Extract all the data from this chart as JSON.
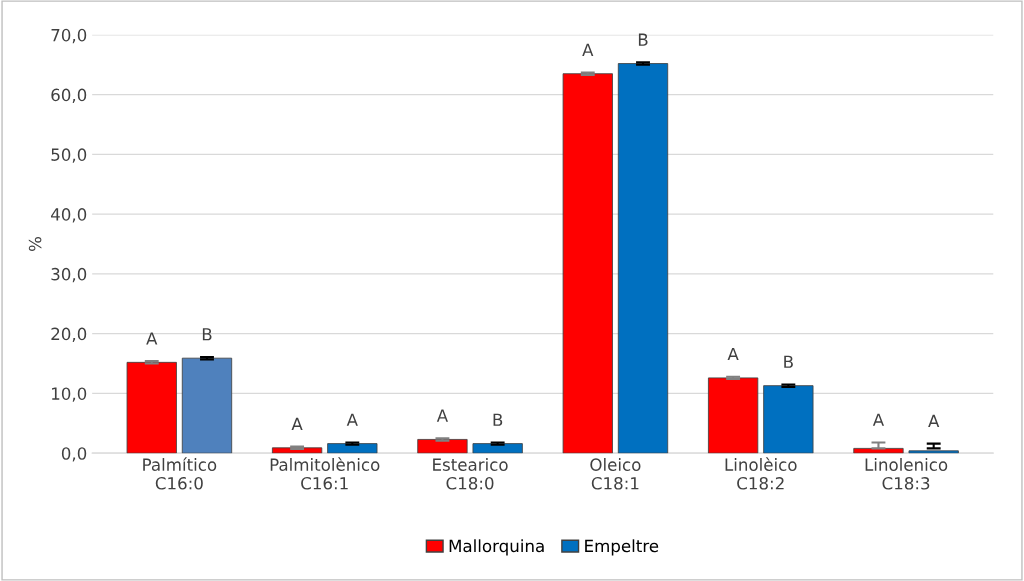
{
  "chart_data": {
    "type": "bar",
    "ylabel": "%",
    "categories": [
      "Palmítico\nC16:0",
      "Palmitolènico\nC16:1",
      "Estearico\nC18:0",
      "Oleico\nC18:1",
      "Linolèico\nC18:2",
      "Linolenico\nC18:3"
    ],
    "series": [
      {
        "name": "Mallorquina",
        "color": "#ff0000",
        "values": [
          15.2,
          0.9,
          2.3,
          63.5,
          12.6,
          0.8
        ],
        "errors": [
          0.2,
          0.2,
          0.2,
          0.2,
          0.2,
          [
            0.8,
            1.8
          ]
        ],
        "value_labels": [
          "A",
          "A",
          "A",
          "A",
          "A",
          "A"
        ]
      },
      {
        "name": "Empeltre",
        "color": "#0070c0",
        "colors": [
          "#4f81bd",
          "#0070c0",
          "#0070c0",
          "#0070c0",
          "#0070c0",
          "#0070c0"
        ],
        "values": [
          15.9,
          1.6,
          1.6,
          65.2,
          11.3,
          0.4
        ],
        "errors": [
          0.2,
          0.2,
          0.2,
          0.2,
          0.2,
          [
            0.8,
            1.6
          ]
        ],
        "value_labels": [
          "B",
          "A",
          "B",
          "B",
          "B",
          "A"
        ]
      }
    ],
    "ylim": [
      0,
      70
    ],
    "yticks": [
      {
        "value": 0,
        "label": "0,0"
      },
      {
        "value": 10,
        "label": "10,0"
      },
      {
        "value": 20,
        "label": "20,0"
      },
      {
        "value": 30,
        "label": "30,0"
      },
      {
        "value": 40,
        "label": "40,0"
      },
      {
        "value": 50,
        "label": "50,0"
      },
      {
        "value": 60,
        "label": "60,0"
      },
      {
        "value": 70,
        "label": "70,0"
      }
    ],
    "grid": "y",
    "legend": "bottom"
  }
}
